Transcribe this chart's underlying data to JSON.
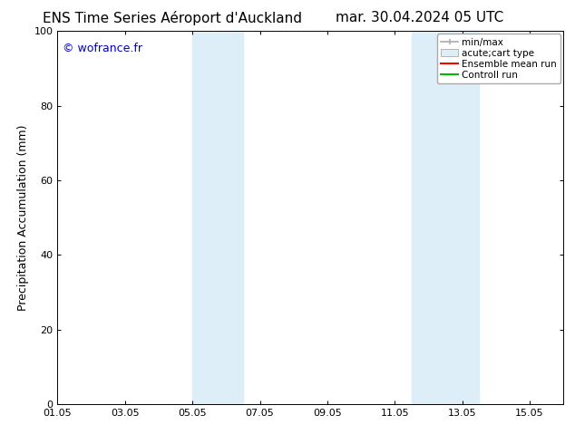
{
  "title_left": "ENS Time Series Aéroport d'Auckland",
  "title_right": "mar. 30.04.2024 05 UTC",
  "ylabel": "Precipitation Accumulation (mm)",
  "watermark": "© wofrance.fr",
  "watermark_color": "#0000cc",
  "xtick_labels": [
    "01.05",
    "03.05",
    "05.05",
    "07.05",
    "09.05",
    "11.05",
    "13.05",
    "15.05"
  ],
  "xtick_positions": [
    0,
    2,
    4,
    6,
    8,
    10,
    12,
    14
  ],
  "ylim": [
    0,
    100
  ],
  "ytick_labels": [
    "0",
    "20",
    "40",
    "60",
    "80",
    "100"
  ],
  "ytick_positions": [
    0,
    20,
    40,
    60,
    80,
    100
  ],
  "shaded_bands": [
    {
      "x_start": 4.0,
      "x_end": 5.5
    },
    {
      "x_start": 10.5,
      "x_end": 12.5
    }
  ],
  "band_color": "#ddeef8",
  "legend_items": [
    {
      "label": "min/max",
      "color": "#aaaaaa",
      "type": "errorbar"
    },
    {
      "label": "acute;cart type",
      "color": "#ddeef8",
      "type": "box"
    },
    {
      "label": "Ensemble mean run",
      "color": "#ff0000",
      "type": "line"
    },
    {
      "label": "Controll run",
      "color": "#00bb00",
      "type": "line"
    }
  ],
  "background_color": "#ffffff",
  "title_fontsize": 11,
  "axis_fontsize": 9,
  "tick_fontsize": 8,
  "legend_fontsize": 7.5,
  "watermark_fontsize": 9
}
